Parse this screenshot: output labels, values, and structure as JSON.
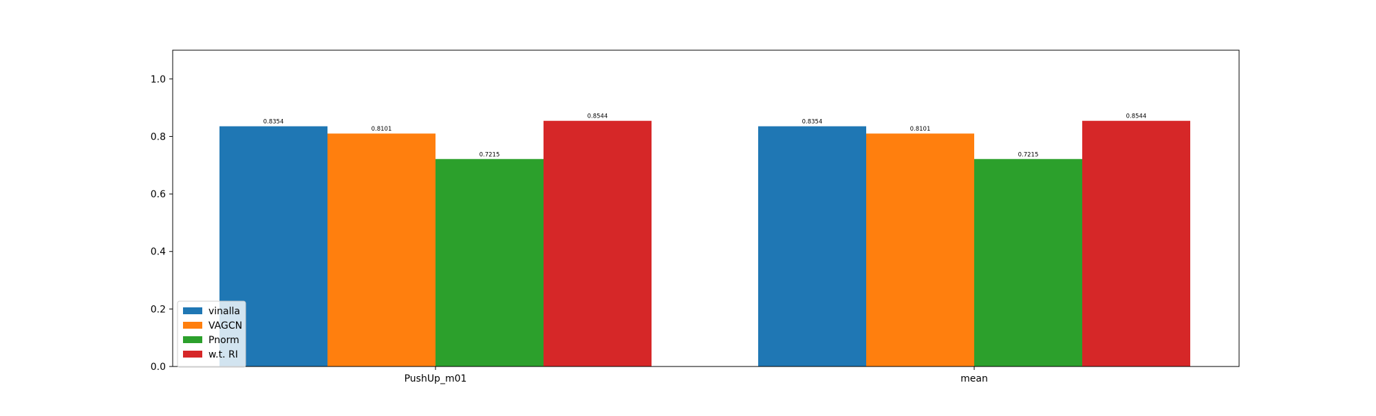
{
  "chart_data": {
    "type": "bar",
    "categories": [
      "PushUp_m01",
      "mean"
    ],
    "series": [
      {
        "name": "vinalla",
        "color": "#1f77b4",
        "values": [
          0.8354,
          0.8354
        ]
      },
      {
        "name": "VAGCN",
        "color": "#ff7f0e",
        "values": [
          0.8101,
          0.8101
        ]
      },
      {
        "name": "Pnorm",
        "color": "#2ca02c",
        "values": [
          0.7215,
          0.7215
        ]
      },
      {
        "name": "w.t. RI",
        "color": "#d62728",
        "values": [
          0.8544,
          0.8544
        ]
      }
    ],
    "value_labels": [
      [
        "0.8354",
        "0.8354"
      ],
      [
        "0.8101",
        "0.8101"
      ],
      [
        "0.7215",
        "0.7215"
      ],
      [
        "0.8544",
        "0.8544"
      ]
    ],
    "title": "",
    "xlabel": "",
    "ylabel": "",
    "ylim": [
      0,
      1.1
    ],
    "yticks": [
      0.0,
      0.2,
      0.4,
      0.6,
      0.8,
      1.0
    ],
    "ytick_labels": [
      "0.0",
      "0.2",
      "0.4",
      "0.6",
      "0.8",
      "1.0"
    ],
    "grid": false,
    "legend_position": "lower-left"
  }
}
